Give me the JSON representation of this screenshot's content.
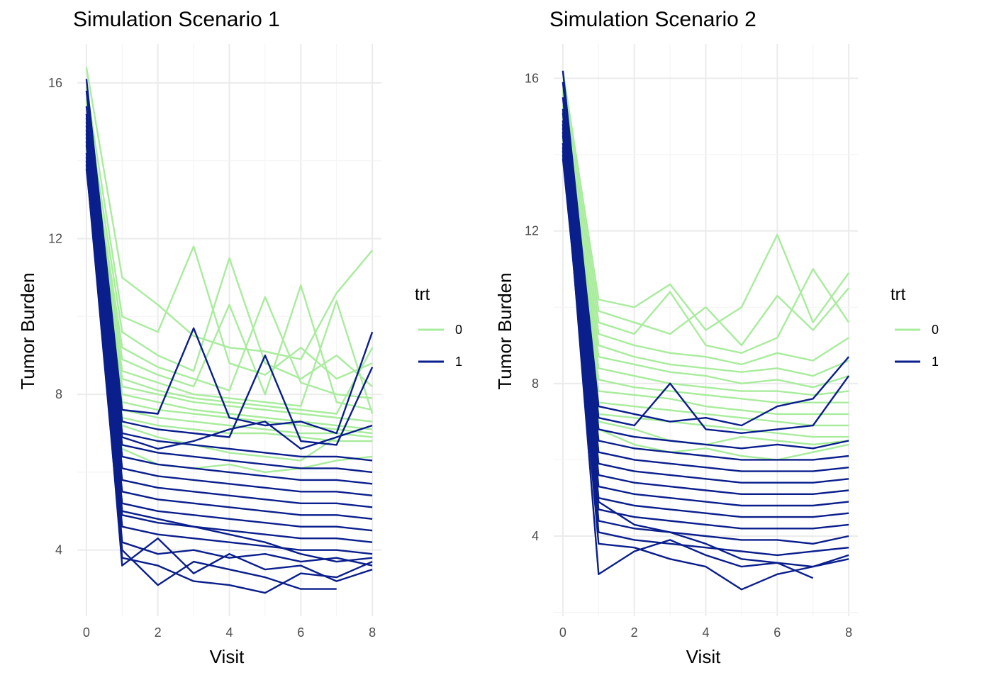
{
  "colors": {
    "control": "#a8ec9c",
    "treated": "#0a1e8c",
    "grid_major": "#ebebeb",
    "grid_minor": "#f4f4f4",
    "tick_text": "#4d4d4d"
  },
  "chart_data": [
    {
      "type": "line",
      "title": "Simulation Scenario 1",
      "xlabel": "Visit",
      "ylabel": "Tumor Burden",
      "x_ticks": [
        "0",
        "2",
        "4",
        "6",
        "8"
      ],
      "y_ticks": [
        "4",
        "8",
        "12",
        "16"
      ],
      "xlim": [
        0,
        8
      ],
      "ylim": [
        2.3,
        17.0
      ],
      "grid": true,
      "legend": {
        "title": "trt",
        "placement": "right",
        "entries": [
          {
            "label": "0",
            "color": "#a8ec9c"
          },
          {
            "label": "1",
            "color": "#0a1e8c"
          }
        ]
      },
      "x": [
        0,
        1,
        2,
        3,
        4,
        5,
        6,
        7,
        8
      ],
      "series": [
        {
          "group": "0",
          "values": [
            16.4,
            11.0,
            10.3,
            9.5,
            9.2,
            9.1,
            8.9,
            10.6,
            11.7
          ]
        },
        {
          "group": "0",
          "values": [
            15.9,
            10.0,
            9.6,
            11.8,
            8.8,
            8.5,
            9.2,
            8.4,
            8.8
          ]
        },
        {
          "group": "0",
          "values": [
            15.5,
            9.6,
            9.0,
            8.6,
            11.5,
            8.8,
            8.4,
            9.0,
            8.2
          ]
        },
        {
          "group": "0",
          "values": [
            15.2,
            9.2,
            8.7,
            8.4,
            8.1,
            10.5,
            8.3,
            8.0,
            7.9
          ]
        },
        {
          "group": "0",
          "values": [
            15.0,
            8.9,
            8.5,
            8.2,
            10.3,
            8.0,
            10.8,
            7.8,
            7.6
          ]
        },
        {
          "group": "0",
          "values": [
            14.8,
            8.6,
            8.3,
            8.0,
            7.9,
            7.8,
            7.7,
            10.4,
            7.5
          ]
        },
        {
          "group": "0",
          "values": [
            14.6,
            8.4,
            8.1,
            7.9,
            7.8,
            7.7,
            7.6,
            7.5,
            9.2
          ]
        },
        {
          "group": "0",
          "values": [
            14.4,
            8.2,
            8.0,
            7.8,
            7.7,
            7.6,
            7.5,
            7.4,
            7.3
          ]
        },
        {
          "group": "0",
          "values": [
            14.2,
            8.0,
            7.8,
            7.6,
            7.5,
            7.4,
            7.3,
            7.2,
            7.1
          ]
        },
        {
          "group": "0",
          "values": [
            14.0,
            7.8,
            7.6,
            7.5,
            7.4,
            7.3,
            7.2,
            7.1,
            7.0
          ]
        },
        {
          "group": "0",
          "values": [
            15.6,
            7.6,
            7.4,
            7.3,
            7.2,
            7.1,
            7.0,
            7.0,
            6.9
          ]
        },
        {
          "group": "0",
          "values": [
            15.1,
            7.4,
            7.2,
            7.1,
            7.0,
            7.0,
            6.9,
            6.8,
            6.8
          ]
        },
        {
          "group": "0",
          "values": [
            14.9,
            7.2,
            6.9,
            6.7,
            6.5,
            6.4,
            6.3,
            6.9,
            7.2
          ]
        },
        {
          "group": "0",
          "values": [
            14.3,
            6.6,
            6.2,
            6.1,
            6.2,
            6.0,
            6.1,
            6.3,
            6.4
          ]
        },
        {
          "group": "1",
          "values": [
            16.1,
            7.6,
            7.5,
            9.7,
            7.4,
            7.2,
            7.3,
            7.0,
            9.6
          ]
        },
        {
          "group": "1",
          "values": [
            15.8,
            7.3,
            7.1,
            7.0,
            6.9,
            9.0,
            6.8,
            6.7,
            8.7
          ]
        },
        {
          "group": "1",
          "values": [
            15.4,
            7.0,
            6.8,
            6.7,
            6.6,
            6.5,
            6.4,
            6.4,
            6.3
          ]
        },
        {
          "group": "1",
          "values": [
            15.1,
            6.7,
            6.5,
            6.4,
            6.3,
            6.2,
            6.1,
            6.1,
            6.0
          ]
        },
        {
          "group": "1",
          "values": [
            14.9,
            6.4,
            6.2,
            6.1,
            6.0,
            5.9,
            5.8,
            5.8,
            5.7
          ]
        },
        {
          "group": "1",
          "values": [
            14.6,
            6.1,
            5.9,
            5.8,
            5.7,
            5.6,
            5.5,
            5.5,
            5.4
          ]
        },
        {
          "group": "1",
          "values": [
            14.4,
            5.8,
            5.6,
            5.5,
            5.4,
            5.3,
            5.2,
            5.2,
            5.1
          ]
        },
        {
          "group": "1",
          "values": [
            14.2,
            5.5,
            5.3,
            5.2,
            5.1,
            5.0,
            4.9,
            4.9,
            4.8
          ]
        },
        {
          "group": "1",
          "values": [
            14.0,
            5.2,
            5.0,
            4.9,
            4.8,
            4.7,
            4.6,
            4.6,
            4.5
          ]
        },
        {
          "group": "1",
          "values": [
            13.8,
            4.9,
            4.7,
            4.6,
            4.5,
            4.4,
            4.3,
            4.3,
            4.2
          ]
        },
        {
          "group": "1",
          "values": [
            15.2,
            4.6,
            4.4,
            4.3,
            4.2,
            4.1,
            4.0,
            4.0,
            3.9
          ]
        },
        {
          "group": "1",
          "values": [
            14.7,
            4.2,
            3.9,
            4.0,
            3.8,
            3.9,
            3.7,
            3.8,
            3.6
          ]
        },
        {
          "group": "1",
          "values": [
            14.5,
            3.6,
            4.3,
            3.4,
            3.9,
            3.5,
            3.6,
            3.2,
            3.5
          ]
        },
        {
          "group": "1",
          "values": [
            14.1,
            4.0,
            3.1,
            3.7,
            3.5,
            3.3,
            3.0,
            3.0,
            null
          ]
        },
        {
          "group": "1",
          "values": [
            13.9,
            3.8,
            3.6,
            3.2,
            3.1,
            2.9,
            3.4,
            3.3,
            3.7
          ]
        },
        {
          "group": "1",
          "values": [
            14.8,
            5.0,
            4.8,
            4.6,
            4.4,
            4.2,
            3.9,
            3.7,
            3.8
          ]
        },
        {
          "group": "1",
          "values": [
            15.0,
            6.9,
            6.6,
            6.8,
            7.1,
            7.3,
            6.6,
            6.9,
            7.2
          ]
        }
      ]
    },
    {
      "type": "line",
      "title": "Simulation Scenario 2",
      "xlabel": "Visit",
      "ylabel": "Tumor Burden",
      "x_ticks": [
        "0",
        "2",
        "4",
        "6",
        "8"
      ],
      "y_ticks": [
        "4",
        "8",
        "12",
        "16"
      ],
      "xlim": [
        0,
        8
      ],
      "ylim": [
        1.9,
        16.9
      ],
      "grid": true,
      "legend": {
        "title": "trt",
        "placement": "right",
        "entries": [
          {
            "label": "0",
            "color": "#a8ec9c"
          },
          {
            "label": "1",
            "color": "#0a1e8c"
          }
        ]
      },
      "x": [
        0,
        1,
        2,
        3,
        4,
        5,
        6,
        7,
        8
      ],
      "series": [
        {
          "group": "0",
          "values": [
            16.2,
            10.2,
            10.0,
            10.6,
            9.4,
            10.0,
            11.9,
            9.6,
            10.9
          ]
        },
        {
          "group": "0",
          "values": [
            15.9,
            9.9,
            9.6,
            9.3,
            10.0,
            9.0,
            10.3,
            9.4,
            10.5
          ]
        },
        {
          "group": "0",
          "values": [
            15.6,
            9.6,
            9.3,
            10.4,
            9.0,
            8.8,
            9.2,
            11.0,
            9.6
          ]
        },
        {
          "group": "0",
          "values": [
            15.3,
            9.3,
            9.0,
            8.8,
            8.7,
            8.5,
            8.8,
            8.6,
            9.2
          ]
        },
        {
          "group": "0",
          "values": [
            15.0,
            9.0,
            8.7,
            8.5,
            8.4,
            8.3,
            8.4,
            8.2,
            8.6
          ]
        },
        {
          "group": "0",
          "values": [
            14.8,
            8.7,
            8.5,
            8.3,
            8.2,
            8.0,
            8.1,
            7.9,
            8.2
          ]
        },
        {
          "group": "0",
          "values": [
            14.6,
            8.4,
            8.2,
            8.0,
            7.9,
            7.8,
            7.8,
            7.7,
            7.8
          ]
        },
        {
          "group": "0",
          "values": [
            14.4,
            8.1,
            7.9,
            7.8,
            7.7,
            7.6,
            7.5,
            7.5,
            7.5
          ]
        },
        {
          "group": "0",
          "values": [
            14.2,
            7.8,
            7.7,
            7.6,
            7.4,
            7.3,
            7.2,
            7.2,
            7.2
          ]
        },
        {
          "group": "0",
          "values": [
            14.0,
            7.5,
            7.4,
            7.3,
            7.2,
            7.1,
            7.0,
            6.9,
            6.9
          ]
        },
        {
          "group": "0",
          "values": [
            15.7,
            7.2,
            7.1,
            7.0,
            6.9,
            6.8,
            6.7,
            6.6,
            6.6
          ]
        },
        {
          "group": "0",
          "values": [
            15.2,
            7.0,
            6.8,
            6.5,
            6.4,
            6.6,
            6.5,
            6.4,
            6.5
          ]
        },
        {
          "group": "0",
          "values": [
            14.5,
            6.8,
            6.4,
            6.2,
            6.3,
            6.1,
            6.0,
            6.2,
            6.4
          ]
        },
        {
          "group": "1",
          "values": [
            16.2,
            7.4,
            7.2,
            7.0,
            7.1,
            6.9,
            7.4,
            7.6,
            8.7
          ]
        },
        {
          "group": "1",
          "values": [
            15.9,
            7.1,
            6.9,
            8.0,
            6.8,
            6.7,
            6.8,
            6.9,
            8.2
          ]
        },
        {
          "group": "1",
          "values": [
            15.5,
            6.8,
            6.6,
            6.5,
            6.4,
            6.3,
            6.4,
            6.3,
            6.5
          ]
        },
        {
          "group": "1",
          "values": [
            15.2,
            6.5,
            6.3,
            6.2,
            6.1,
            6.0,
            6.0,
            6.0,
            6.1
          ]
        },
        {
          "group": "1",
          "values": [
            14.9,
            6.2,
            6.0,
            5.9,
            5.8,
            5.7,
            5.7,
            5.7,
            5.8
          ]
        },
        {
          "group": "1",
          "values": [
            14.7,
            5.9,
            5.7,
            5.6,
            5.5,
            5.4,
            5.4,
            5.4,
            5.5
          ]
        },
        {
          "group": "1",
          "values": [
            14.5,
            5.6,
            5.4,
            5.3,
            5.2,
            5.1,
            5.1,
            5.1,
            5.2
          ]
        },
        {
          "group": "1",
          "values": [
            14.3,
            5.3,
            5.1,
            5.0,
            4.9,
            4.8,
            4.8,
            4.8,
            4.9
          ]
        },
        {
          "group": "1",
          "values": [
            14.1,
            5.0,
            4.8,
            4.7,
            4.6,
            4.5,
            4.5,
            4.5,
            4.6
          ]
        },
        {
          "group": "1",
          "values": [
            13.9,
            4.7,
            4.5,
            4.4,
            4.3,
            4.2,
            4.2,
            4.2,
            4.3
          ]
        },
        {
          "group": "1",
          "values": [
            15.1,
            4.4,
            4.2,
            4.1,
            4.0,
            3.9,
            3.9,
            3.8,
            4.0
          ]
        },
        {
          "group": "1",
          "values": [
            14.8,
            4.1,
            3.9,
            3.8,
            3.7,
            3.6,
            3.5,
            3.6,
            3.7
          ]
        },
        {
          "group": "1",
          "values": [
            14.6,
            3.0,
            3.6,
            3.9,
            3.5,
            3.2,
            3.3,
            2.9,
            null
          ]
        },
        {
          "group": "1",
          "values": [
            14.2,
            3.8,
            3.7,
            3.4,
            3.2,
            2.6,
            3.0,
            3.2,
            3.4
          ]
        },
        {
          "group": "1",
          "values": [
            14.0,
            4.9,
            4.3,
            4.1,
            3.8,
            3.4,
            3.3,
            3.2,
            3.5
          ]
        }
      ]
    }
  ]
}
